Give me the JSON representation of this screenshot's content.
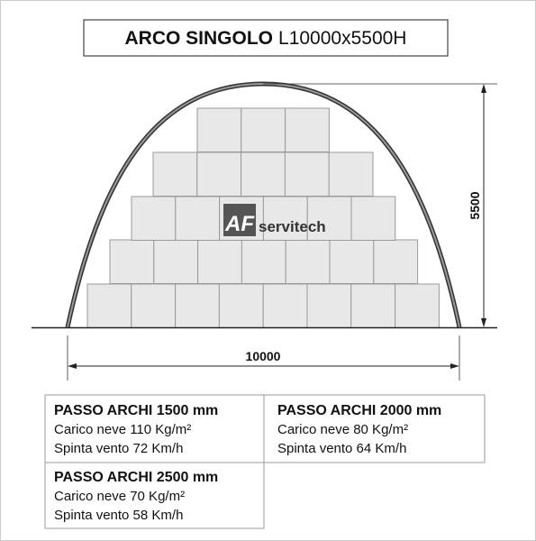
{
  "header": {
    "title_bold": "ARCO SINGOLO",
    "title_rest": "L10000x5500H"
  },
  "dimensions": {
    "height": "5500",
    "width": "10000"
  },
  "logo": {
    "mark": "AF",
    "name": "servitech"
  },
  "specs": [
    {
      "heading": "PASSO ARCHI 1500 mm",
      "lines": [
        "Carico neve 110 Kg/m²",
        "Spinta vento 72 Km/h"
      ]
    },
    {
      "heading": "PASSO ARCHI 2000 mm",
      "lines": [
        "Carico neve 80 Kg/m²",
        "Spinta vento 64 Km/h"
      ]
    },
    {
      "heading": "PASSO ARCHI 2500 mm",
      "lines": [
        "Carico neve 70 Kg/m²",
        "Spinta vento 58 Km/h"
      ]
    }
  ]
}
